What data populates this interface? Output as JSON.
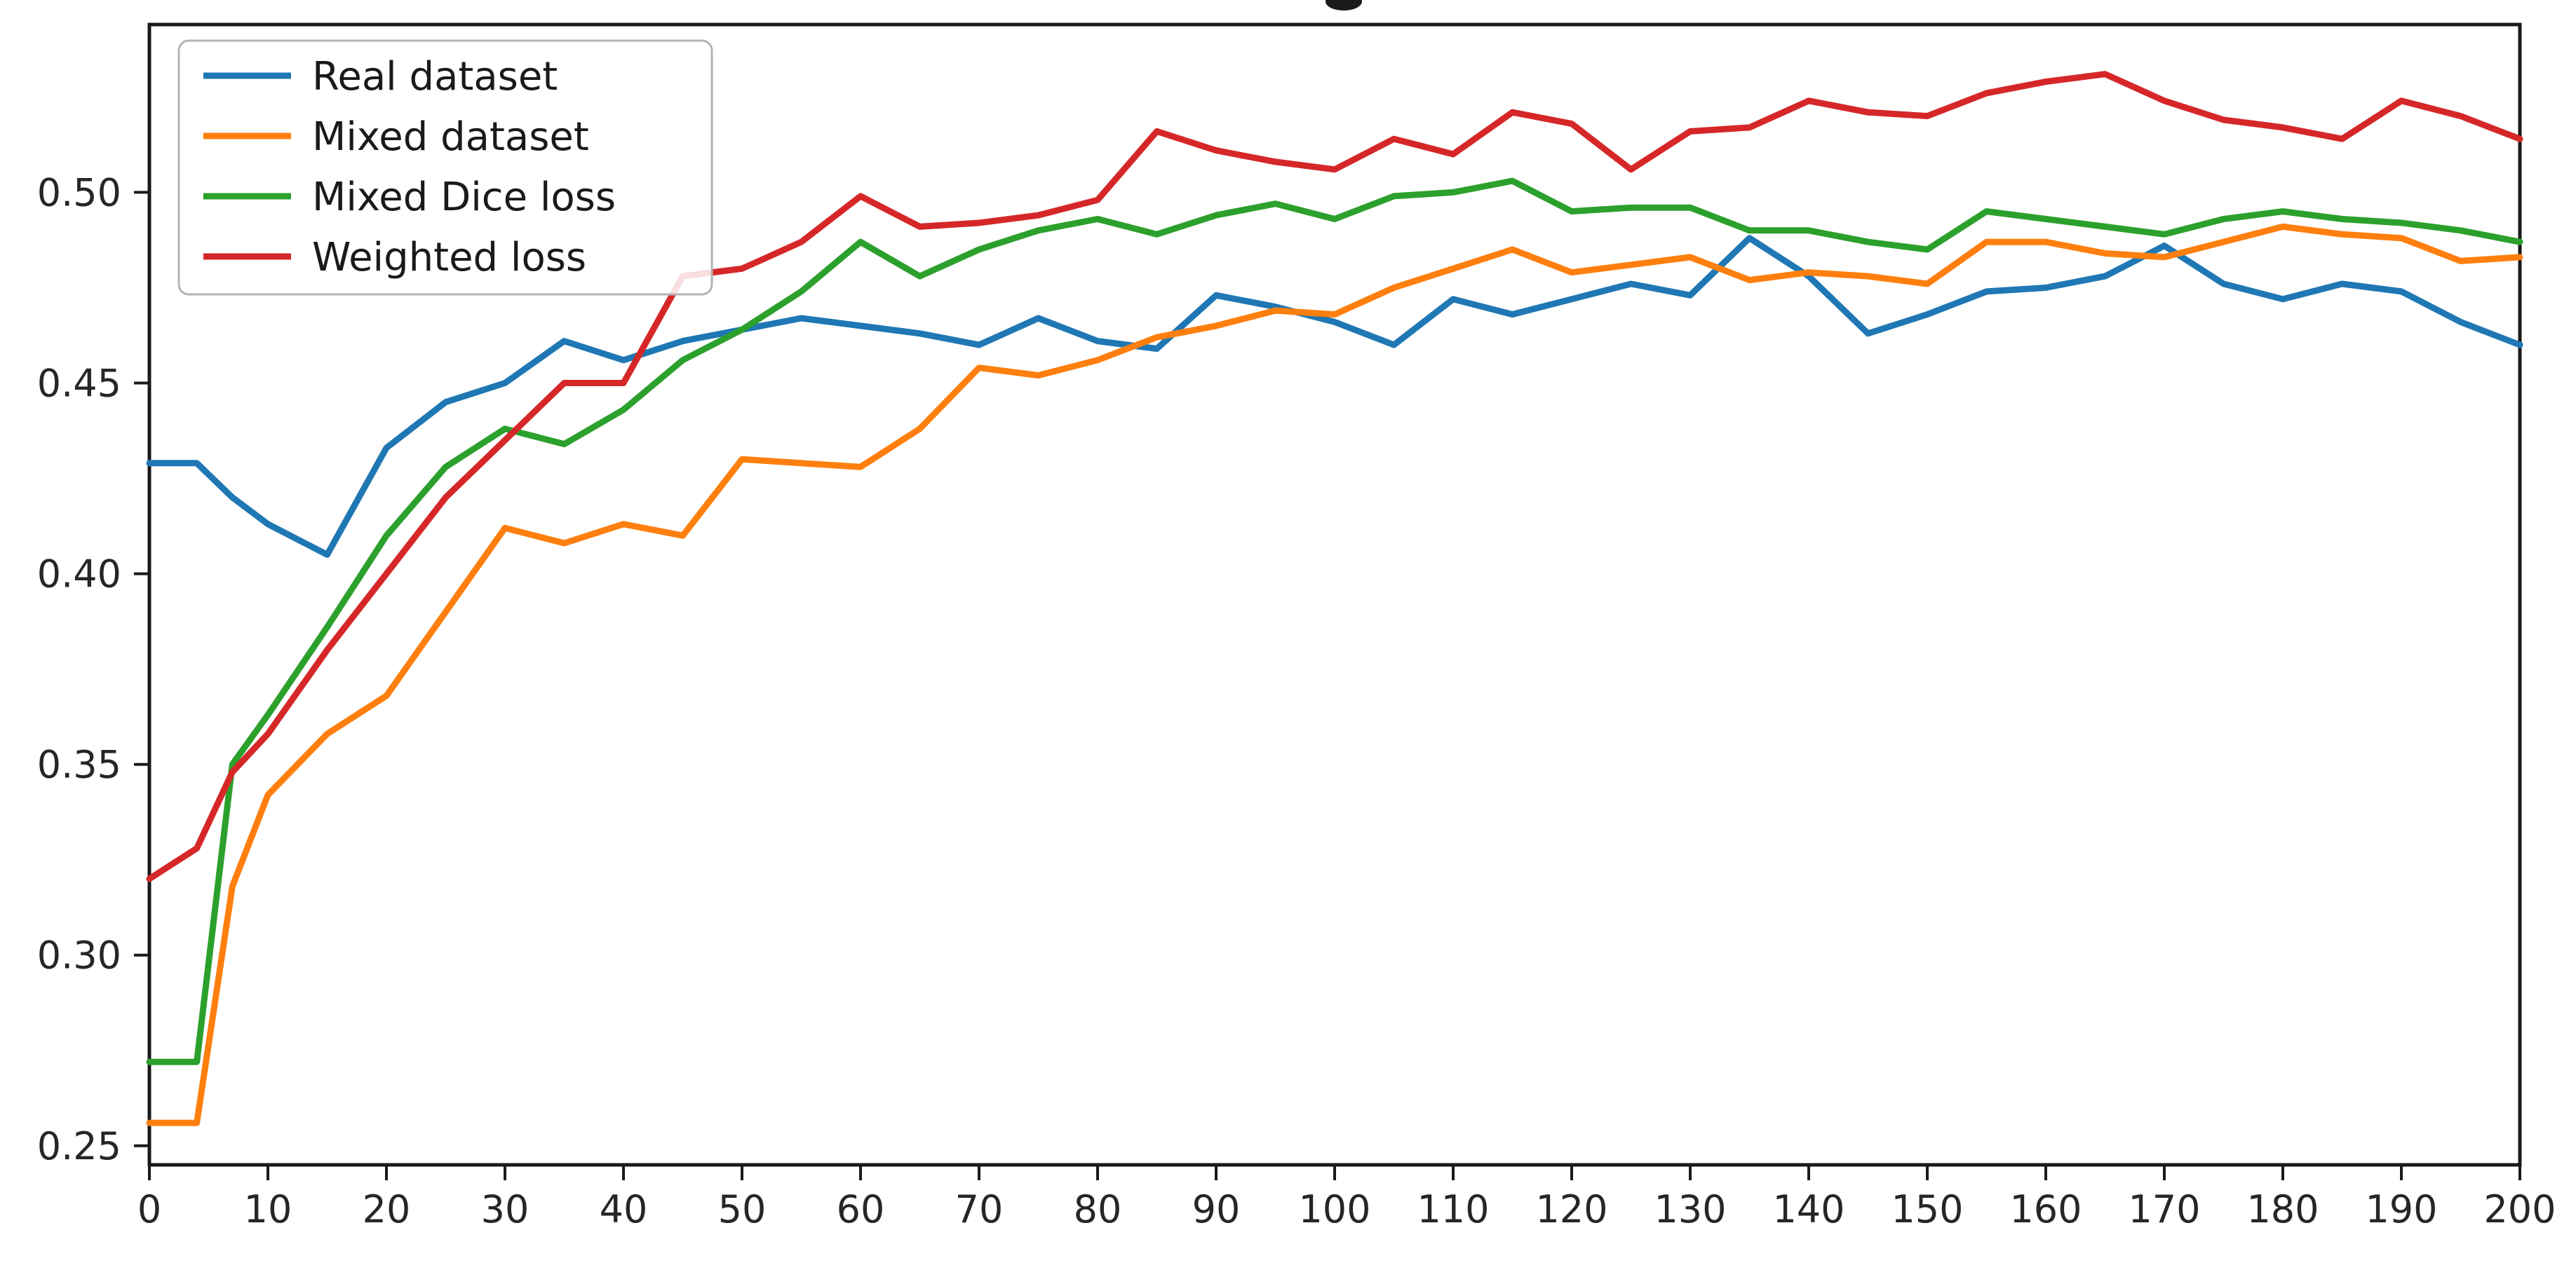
{
  "figure": {
    "background_color": "#ffffff",
    "cropped_title_glyph_visible": true
  },
  "chart_data": {
    "type": "line",
    "title": "",
    "xlabel": "",
    "ylabel": "",
    "grid": false,
    "xlim": [
      0,
      200
    ],
    "ylim": [
      0.245,
      0.544
    ],
    "x_ticks": [
      0,
      10,
      20,
      30,
      40,
      50,
      60,
      70,
      80,
      90,
      100,
      110,
      120,
      130,
      140,
      150,
      160,
      170,
      180,
      190,
      200
    ],
    "y_ticks": [
      0.25,
      0.3,
      0.35,
      0.4,
      0.45,
      0.5
    ],
    "y_tick_labels": [
      "0.25",
      "0.30",
      "0.35",
      "0.40",
      "0.45",
      "0.50"
    ],
    "legend": {
      "position": "upper left",
      "entries": [
        "Real dataset",
        "Mixed dataset",
        "Mixed Dice loss",
        "Weighted loss"
      ]
    },
    "x": [
      0,
      4,
      7,
      10,
      15,
      20,
      25,
      30,
      35,
      40,
      45,
      50,
      55,
      60,
      65,
      70,
      75,
      80,
      85,
      90,
      95,
      100,
      105,
      110,
      115,
      120,
      125,
      130,
      135,
      140,
      145,
      150,
      155,
      160,
      165,
      170,
      175,
      180,
      185,
      190,
      195,
      200
    ],
    "series": [
      {
        "name": "Real dataset",
        "color": "#1f77b4",
        "values": [
          0.429,
          0.429,
          0.42,
          0.413,
          0.405,
          0.433,
          0.445,
          0.45,
          0.461,
          0.456,
          0.461,
          0.464,
          0.467,
          0.465,
          0.463,
          0.46,
          0.467,
          0.461,
          0.459,
          0.473,
          0.47,
          0.466,
          0.46,
          0.472,
          0.468,
          0.472,
          0.476,
          0.473,
          0.488,
          0.478,
          0.463,
          0.468,
          0.474,
          0.475,
          0.478,
          0.486,
          0.476,
          0.472,
          0.476,
          0.474,
          0.466,
          0.46
        ]
      },
      {
        "name": "Mixed dataset",
        "color": "#ff7f0e",
        "values": [
          0.256,
          0.256,
          0.318,
          0.342,
          0.358,
          0.368,
          0.39,
          0.412,
          0.408,
          0.413,
          0.41,
          0.43,
          0.429,
          0.428,
          0.438,
          0.454,
          0.452,
          0.456,
          0.462,
          0.465,
          0.469,
          0.468,
          0.475,
          0.48,
          0.485,
          0.479,
          0.481,
          0.483,
          0.477,
          0.479,
          0.478,
          0.476,
          0.487,
          0.487,
          0.484,
          0.483,
          0.487,
          0.491,
          0.489,
          0.488,
          0.482,
          0.483
        ]
      },
      {
        "name": "Mixed Dice loss",
        "color": "#2ca02c",
        "values": [
          0.272,
          0.272,
          0.35,
          0.363,
          0.386,
          0.41,
          0.428,
          0.438,
          0.434,
          0.443,
          0.456,
          0.464,
          0.474,
          0.487,
          0.478,
          0.485,
          0.49,
          0.493,
          0.489,
          0.494,
          0.497,
          0.493,
          0.499,
          0.5,
          0.503,
          0.495,
          0.496,
          0.496,
          0.49,
          0.49,
          0.487,
          0.485,
          0.495,
          0.493,
          0.491,
          0.489,
          0.493,
          0.495,
          0.493,
          0.492,
          0.49,
          0.487
        ]
      },
      {
        "name": "Weighted loss",
        "color": "#d62728",
        "values": [
          0.32,
          0.328,
          0.348,
          0.358,
          0.38,
          0.4,
          0.42,
          0.435,
          0.45,
          0.45,
          0.478,
          0.48,
          0.487,
          0.499,
          0.491,
          0.492,
          0.494,
          0.498,
          0.516,
          0.511,
          0.508,
          0.506,
          0.514,
          0.51,
          0.521,
          0.518,
          0.506,
          0.516,
          0.517,
          0.524,
          0.521,
          0.52,
          0.526,
          0.529,
          0.531,
          0.524,
          0.519,
          0.517,
          0.514,
          0.524,
          0.52,
          0.514
        ]
      }
    ]
  }
}
